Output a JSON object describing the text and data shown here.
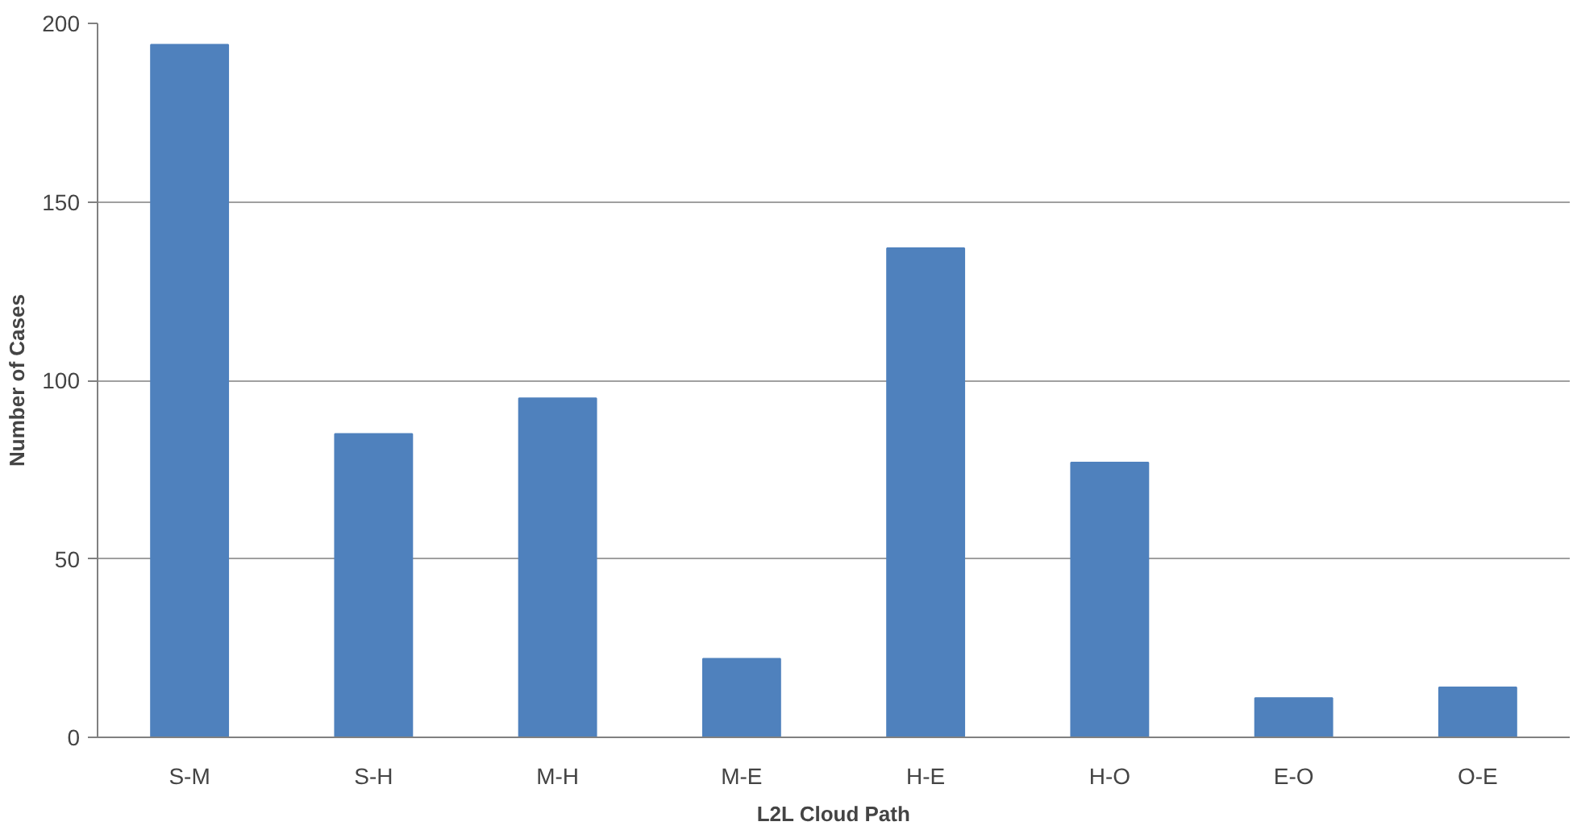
{
  "chart_data": {
    "type": "bar",
    "xlabel": "L2L Cloud Path",
    "ylabel": "Number of Cases",
    "categories": [
      "S-M",
      "S-H",
      "M-H",
      "M-E",
      "H-E",
      "H-O",
      "E-O",
      "O-E"
    ],
    "values": [
      194,
      85,
      95,
      22,
      137,
      77,
      11,
      14
    ],
    "color": "#4f81bd",
    "ylim": [
      0,
      200
    ],
    "yticks": [
      0,
      50,
      100,
      150,
      200
    ],
    "grid": "y"
  }
}
